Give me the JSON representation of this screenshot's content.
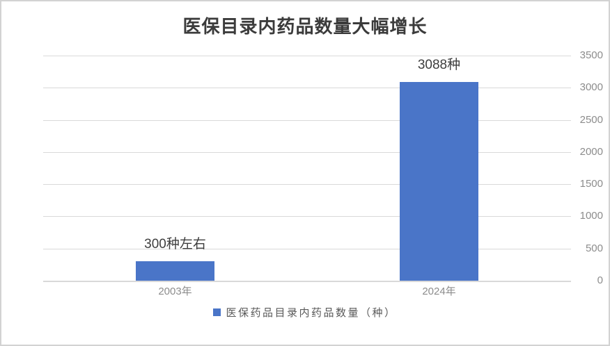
{
  "chart_data": {
    "type": "bar",
    "title": "医保目录内药品数量大幅增长",
    "categories": [
      "2003年",
      "2024年"
    ],
    "values": [
      300,
      3088
    ],
    "data_labels": [
      "300种左右",
      "3088种"
    ],
    "series_name": "医保药品目录内药品数量（种）",
    "xlabel": "",
    "ylabel": "",
    "ylim": [
      0,
      3500
    ],
    "yticks": [
      0,
      500,
      1000,
      1500,
      2000,
      2500,
      3000,
      3500
    ],
    "grid": true,
    "legend_position": "bottom"
  },
  "colors": {
    "bar": "#4a75c8",
    "gridline": "#d9d9d9",
    "axis_label": "#8c8c8c",
    "title": "#3b3b3b",
    "data_label": "#3d3d3d",
    "legend_text": "#595959",
    "border": "#d2d2d2",
    "background": "#ffffff"
  }
}
